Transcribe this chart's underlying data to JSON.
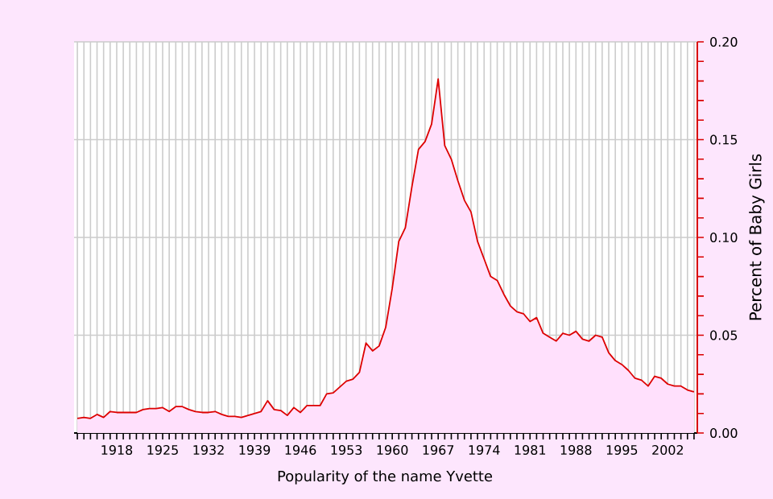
{
  "chart_data": {
    "type": "area",
    "title": "Popularity of the name Yvette",
    "ylabel": "Percent of Baby Girls",
    "x": [
      1912,
      1913,
      1914,
      1915,
      1916,
      1917,
      1918,
      1919,
      1920,
      1921,
      1922,
      1923,
      1924,
      1925,
      1926,
      1927,
      1928,
      1929,
      1930,
      1931,
      1932,
      1933,
      1934,
      1935,
      1936,
      1937,
      1938,
      1939,
      1940,
      1941,
      1942,
      1943,
      1944,
      1945,
      1946,
      1947,
      1948,
      1949,
      1950,
      1951,
      1952,
      1953,
      1954,
      1955,
      1956,
      1957,
      1958,
      1959,
      1960,
      1961,
      1962,
      1963,
      1964,
      1965,
      1966,
      1967,
      1968,
      1969,
      1970,
      1971,
      1972,
      1973,
      1974,
      1975,
      1976,
      1977,
      1978,
      1979,
      1980,
      1981,
      1982,
      1983,
      1984,
      1985,
      1986,
      1987,
      1988,
      1989,
      1990,
      1991,
      1992,
      1993,
      1994,
      1995,
      1996,
      1997,
      1998,
      1999,
      2000,
      2001,
      2002,
      2003,
      2004,
      2005,
      2006
    ],
    "series": [
      {
        "color": "#dd0000",
        "values": [
          0.0075,
          0.008,
          0.0075,
          0.0095,
          0.008,
          0.011,
          0.0105,
          0.0105,
          0.0105,
          0.0105,
          0.012,
          0.0125,
          0.0125,
          0.013,
          0.011,
          0.0135,
          0.0135,
          0.012,
          0.011,
          0.0105,
          0.0105,
          0.011,
          0.0095,
          0.0085,
          0.0085,
          0.008,
          0.009,
          0.01,
          0.011,
          0.0165,
          0.012,
          0.0115,
          0.009,
          0.013,
          0.0105,
          0.014,
          0.014,
          0.014,
          0.02,
          0.0205,
          0.0235,
          0.0265,
          0.0275,
          0.031,
          0.046,
          0.042,
          0.0445,
          0.054,
          0.074,
          0.098,
          0.105,
          0.126,
          0.145,
          0.149,
          0.158,
          0.181,
          0.147,
          0.14,
          0.129,
          0.119,
          0.113,
          0.098,
          0.089,
          0.08,
          0.078,
          0.071,
          0.065,
          0.062,
          0.061,
          0.057,
          0.059,
          0.051,
          0.049,
          0.047,
          0.051,
          0.05,
          0.052,
          0.048,
          0.047,
          0.05,
          0.049,
          0.041,
          0.037,
          0.035,
          0.032,
          0.028,
          0.027,
          0.024,
          0.029,
          0.028,
          0.025,
          0.024,
          0.024,
          0.022,
          0.021
        ]
      }
    ],
    "xlim": [
      1911.5,
      2006.5
    ],
    "ylim": [
      0,
      0.2
    ],
    "xticks": [
      {
        "value": 1912,
        "label": null
      },
      {
        "value": 1913,
        "label": null
      },
      {
        "value": 1914,
        "label": null
      },
      {
        "value": 1915,
        "label": null
      },
      {
        "value": 1916,
        "label": null
      },
      {
        "value": 1917,
        "label": null
      },
      1918,
      {
        "value": 1919,
        "label": null
      },
      {
        "value": 1920,
        "label": null
      },
      {
        "value": 1921,
        "label": null
      },
      {
        "value": 1922,
        "label": null
      },
      {
        "value": 1923,
        "label": null
      },
      {
        "value": 1924,
        "label": null
      },
      1925,
      {
        "value": 1926,
        "label": null
      },
      {
        "value": 1927,
        "label": null
      },
      {
        "value": 1928,
        "label": null
      },
      {
        "value": 1929,
        "label": null
      },
      {
        "value": 1930,
        "label": null
      },
      {
        "value": 1931,
        "label": null
      },
      1932,
      {
        "value": 1933,
        "label": null
      },
      {
        "value": 1934,
        "label": null
      },
      {
        "value": 1935,
        "label": null
      },
      {
        "value": 1936,
        "label": null
      },
      {
        "value": 1937,
        "label": null
      },
      {
        "value": 1938,
        "label": null
      },
      1939,
      {
        "value": 1940,
        "label": null
      },
      {
        "value": 1941,
        "label": null
      },
      {
        "value": 1942,
        "label": null
      },
      {
        "value": 1943,
        "label": null
      },
      {
        "value": 1944,
        "label": null
      },
      {
        "value": 1945,
        "label": null
      },
      1946,
      {
        "value": 1947,
        "label": null
      },
      {
        "value": 1948,
        "label": null
      },
      {
        "value": 1949,
        "label": null
      },
      {
        "value": 1950,
        "label": null
      },
      {
        "value": 1951,
        "label": null
      },
      {
        "value": 1952,
        "label": null
      },
      1953,
      {
        "value": 1954,
        "label": null
      },
      {
        "value": 1955,
        "label": null
      },
      {
        "value": 1956,
        "label": null
      },
      {
        "value": 1957,
        "label": null
      },
      {
        "value": 1958,
        "label": null
      },
      {
        "value": 1959,
        "label": null
      },
      1960,
      {
        "value": 1961,
        "label": null
      },
      {
        "value": 1962,
        "label": null
      },
      {
        "value": 1963,
        "label": null
      },
      {
        "value": 1964,
        "label": null
      },
      {
        "value": 1965,
        "label": null
      },
      {
        "value": 1966,
        "label": null
      },
      1967,
      {
        "value": 1968,
        "label": null
      },
      {
        "value": 1969,
        "label": null
      },
      {
        "value": 1970,
        "label": null
      },
      {
        "value": 1971,
        "label": null
      },
      {
        "value": 1972,
        "label": null
      },
      {
        "value": 1973,
        "label": null
      },
      1974,
      {
        "value": 1975,
        "label": null
      },
      {
        "value": 1976,
        "label": null
      },
      {
        "value": 1977,
        "label": null
      },
      {
        "value": 1978,
        "label": null
      },
      {
        "value": 1979,
        "label": null
      },
      {
        "value": 1980,
        "label": null
      },
      1981,
      {
        "value": 1982,
        "label": null
      },
      {
        "value": 1983,
        "label": null
      },
      {
        "value": 1984,
        "label": null
      },
      {
        "value": 1985,
        "label": null
      },
      {
        "value": 1986,
        "label": null
      },
      {
        "value": 1987,
        "label": null
      },
      1988,
      {
        "value": 1989,
        "label": null
      },
      {
        "value": 1990,
        "label": null
      },
      {
        "value": 1991,
        "label": null
      },
      {
        "value": 1992,
        "label": null
      },
      {
        "value": 1993,
        "label": null
      },
      {
        "value": 1994,
        "label": null
      },
      1995,
      {
        "value": 1996,
        "label": null
      },
      {
        "value": 1997,
        "label": null
      },
      {
        "value": 1998,
        "label": null
      },
      {
        "value": 1999,
        "label": null
      },
      {
        "value": 2000,
        "label": null
      },
      {
        "value": 2001,
        "label": null
      },
      2002,
      {
        "value": 2003,
        "label": null
      },
      {
        "value": 2004,
        "label": null
      },
      {
        "value": 2005,
        "label": null
      },
      {
        "value": 2006,
        "label": null
      }
    ],
    "yticks": [
      {
        "value": 0,
        "label": "0.00"
      },
      {
        "value": 0.01,
        "label": null
      },
      {
        "value": 0.02,
        "label": null
      },
      {
        "value": 0.03,
        "label": null
      },
      {
        "value": 0.04,
        "label": null
      },
      {
        "value": 0.05,
        "label": "0.05"
      },
      {
        "value": 0.06,
        "label": null
      },
      {
        "value": 0.07,
        "label": null
      },
      {
        "value": 0.08,
        "label": null
      },
      {
        "value": 0.09,
        "label": null
      },
      {
        "value": 0.1,
        "label": "0.10"
      },
      {
        "value": 0.11,
        "label": null
      },
      {
        "value": 0.12,
        "label": null
      },
      {
        "value": 0.13,
        "label": null
      },
      {
        "value": 0.14,
        "label": null
      },
      {
        "value": 0.15,
        "label": "0.15"
      },
      {
        "value": 0.16,
        "label": null
      },
      {
        "value": 0.17,
        "label": null
      },
      {
        "value": 0.18,
        "label": null
      },
      {
        "value": 0.19,
        "label": null
      },
      {
        "value": 0.2,
        "label": "0.20"
      }
    ],
    "grid": true
  }
}
